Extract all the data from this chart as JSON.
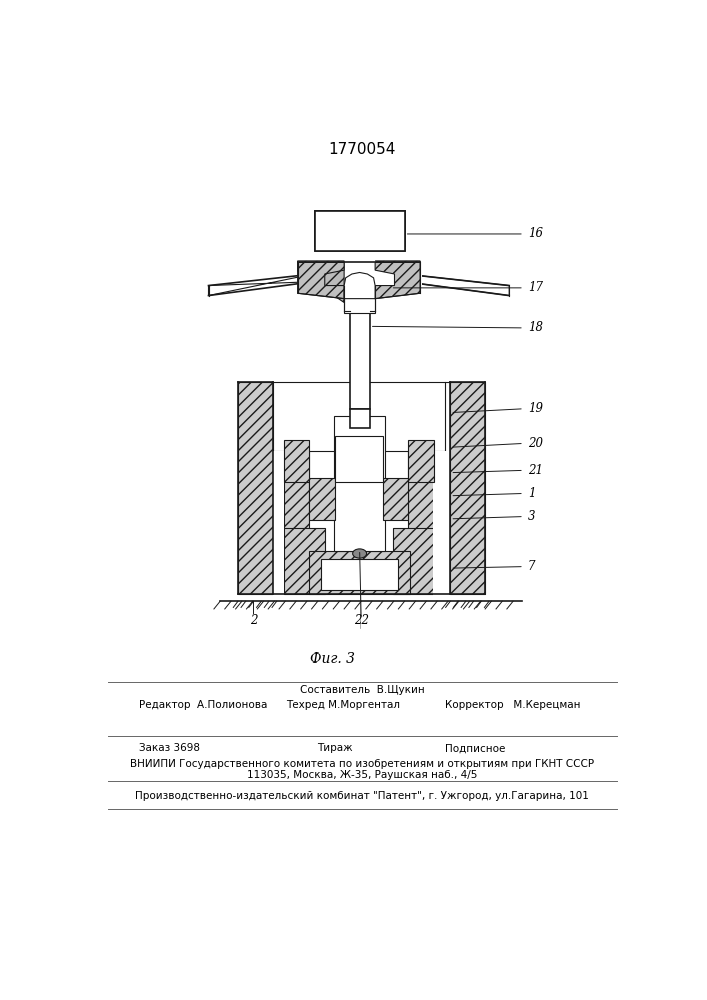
{
  "title": "1770054",
  "fig_label": "Фиг. 3",
  "line_color": "#1a1a1a",
  "footer": {
    "sostavitel": "Составитель  В.Щукин",
    "tekhred": "Техред М.Моргентал",
    "redaktor": "Редактор  А.Полионова",
    "korrektor": "Корректор   М.Керецман",
    "zakaz": "Заказ 3698",
    "tirazh": "Тираж",
    "podpisnoe": "Подписное",
    "vniipи": "ВНИИПИ Государственного комитета по изобретениям и открытиям при ГКНТ СССР",
    "address": "113035, Москва, Ж-35, Раушская наб., 4/5",
    "patent": "Производственно-издательский комбинат \"Патент\", г. Ужгород, ул.Гагарина, 101"
  }
}
